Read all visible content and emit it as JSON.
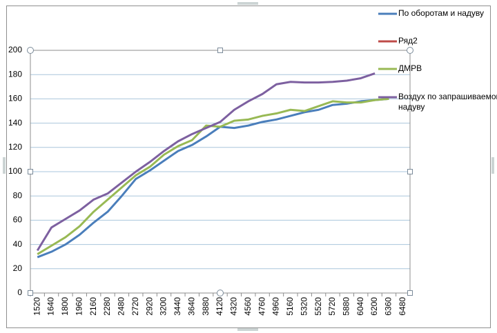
{
  "chart_data": {
    "type": "line",
    "categories": [
      "1520",
      "1640",
      "1800",
      "1960",
      "2160",
      "2280",
      "2480",
      "2720",
      "2920",
      "3200",
      "3440",
      "3640",
      "3880",
      "4120",
      "4320",
      "4560",
      "4760",
      "4960",
      "5160",
      "5320",
      "5520",
      "5720",
      "5880",
      "6040",
      "6200",
      "6360",
      "6480"
    ],
    "series": [
      {
        "name": "По оборотам и надуву",
        "color": "#4a7ebb",
        "values": [
          29.5,
          34,
          40,
          48,
          58,
          67,
          80,
          94,
          101,
          109,
          117,
          122,
          129,
          137,
          136,
          138,
          141,
          143,
          146,
          149,
          151,
          155,
          156,
          158,
          159,
          160,
          null
        ]
      },
      {
        "name": "Ряд2",
        "color": "#be4b48",
        "values": [
          null,
          null,
          null,
          null,
          null,
          null,
          null,
          null,
          null,
          null,
          null,
          null,
          null,
          null,
          null,
          null,
          null,
          null,
          null,
          null,
          null,
          null,
          null,
          null,
          null,
          null,
          null
        ]
      },
      {
        "name": "ДМРВ",
        "color": "#98b954",
        "values": [
          32,
          39,
          46,
          55,
          67,
          77,
          87,
          97,
          104,
          114,
          121,
          126,
          138,
          137,
          142,
          143,
          146,
          148,
          151,
          150,
          154,
          158,
          157,
          157,
          159,
          160,
          null
        ]
      },
      {
        "name": "Воздух по запрашиваемому надуву",
        "color": "#7d60a0",
        "values": [
          35,
          54,
          61,
          68,
          77,
          82,
          91,
          100,
          108,
          117,
          125,
          131,
          136,
          141,
          151,
          158,
          164,
          172,
          174,
          173.5,
          173.5,
          174,
          175,
          177,
          181,
          null,
          null
        ]
      }
    ],
    "ylim": [
      0,
      200
    ],
    "yticks": [
      0,
      20,
      40,
      60,
      80,
      100,
      120,
      140,
      160,
      180,
      200
    ],
    "grid": true
  }
}
